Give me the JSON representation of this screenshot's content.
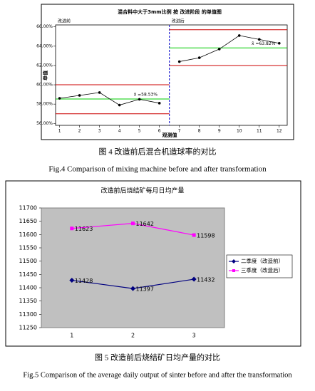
{
  "chart_data": [
    {
      "type": "control",
      "title": "混合料中大于3mm比例 按 改进阶段 的单值图",
      "xlabel": "观测值",
      "ylabel": "单值",
      "xlim": [
        0.8,
        12.4
      ],
      "xticks": [
        1,
        2,
        3,
        4,
        5,
        6,
        7,
        8,
        9,
        10,
        11,
        12
      ],
      "ylim": [
        55.8,
        66.2
      ],
      "yticks": [
        {
          "value": 56,
          "label": "56.00%"
        },
        {
          "value": 58,
          "label": "58.00%"
        },
        {
          "value": 60,
          "label": "60.00%"
        },
        {
          "value": 62,
          "label": "62.00%"
        },
        {
          "value": 64,
          "label": "64.00%"
        },
        {
          "value": 66,
          "label": "66.00%"
        }
      ],
      "color": "#000000",
      "mean_color": "#00cc00",
      "limit_color": "#cc0000",
      "divider_color": "#0000cc",
      "stages": [
        {
          "name": "改进前",
          "x": [
            1,
            2,
            3,
            4,
            5,
            6
          ],
          "values": [
            58.6,
            58.9,
            59.2,
            57.9,
            58.5,
            58.1
          ],
          "mean": 58.53,
          "mean_label": "x̄ =58.53%",
          "ucl": 60.0,
          "lcl": 57.0
        },
        {
          "name": "改进后",
          "x": [
            7,
            8,
            9,
            10,
            11,
            12
          ],
          "values": [
            62.4,
            62.8,
            63.7,
            65.1,
            64.7,
            64.3
          ],
          "mean": 63.82,
          "mean_label": "x̄ =63.82%",
          "ucl": 65.7,
          "lcl": 62.0
        }
      ],
      "caption_zh": "图 4 改造前后混合机造球率的对比",
      "caption_en": "Fig.4 Comparison of mixing machine before and after transformation"
    },
    {
      "type": "line",
      "title": "改造前后烧结矿每月日均产量",
      "categories": [
        "1",
        "2",
        "3"
      ],
      "ylim": [
        11250,
        11700
      ],
      "yticks": [
        11250,
        11300,
        11350,
        11400,
        11450,
        11500,
        11550,
        11600,
        11650,
        11700
      ],
      "background": "#c0c0c0",
      "legend": "right",
      "series": [
        {
          "name": "二季度（改造前）",
          "color": "#000080",
          "marker": "diamond",
          "values": [
            11428,
            11397,
            11432
          ]
        },
        {
          "name": "三季度（改造后）",
          "color": "#ff00ff",
          "marker": "square",
          "values": [
            11623,
            11642,
            11598
          ]
        }
      ],
      "caption_zh": "图 5 改造前后烧结矿日均产量的对比",
      "caption_en": "Fig.5 Comparison of the average daily output of sinter before and after the transformation"
    }
  ]
}
